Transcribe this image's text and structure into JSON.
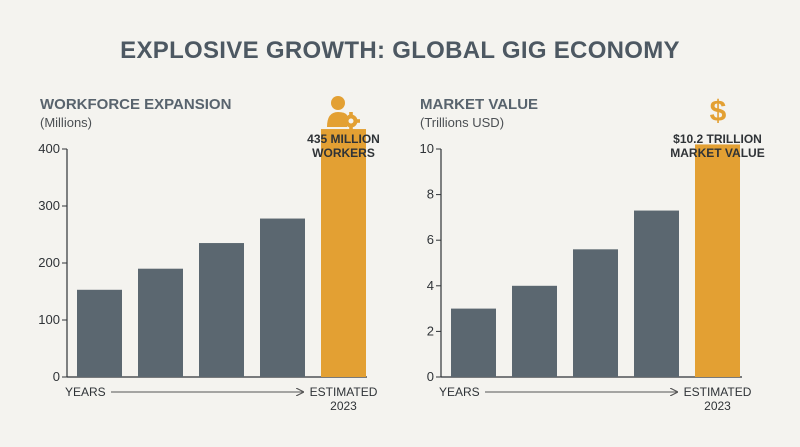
{
  "title": "EXPLOSIVE GROWTH: GLOBAL GIG ECONOMY",
  "colors": {
    "bar": "#5b6770",
    "highlight": "#e3a033",
    "axis": "#2f3337",
    "title": "#4d5862"
  },
  "chart_data": [
    {
      "type": "bar",
      "title": "WORKFORCE EXPANSION",
      "subtitle": "(Millions)",
      "x_axis_start_label": "YEARS",
      "x_axis_end_label": [
        "ESTIMATED",
        "2023"
      ],
      "ylim": [
        0,
        400
      ],
      "yticks": [
        0,
        100,
        200,
        300,
        400
      ],
      "values": [
        153,
        190,
        235,
        278,
        435
      ],
      "highlight_index": 4,
      "callout": [
        "435 MILLION",
        "WORKERS"
      ],
      "icon": "worker-gear-icon"
    },
    {
      "type": "bar",
      "title": "MARKET VALUE",
      "subtitle": "(Trillions USD)",
      "x_axis_start_label": "YEARS",
      "x_axis_end_label": [
        "ESTIMATED",
        "2023"
      ],
      "ylim": [
        0,
        10
      ],
      "yticks": [
        0,
        2,
        4,
        6,
        8,
        10
      ],
      "values": [
        3.0,
        4.0,
        5.6,
        7.3,
        10.2
      ],
      "highlight_index": 4,
      "callout": [
        "$10.2 TRILLION",
        "MARKET VALUE"
      ],
      "icon": "dollar-icon"
    }
  ]
}
